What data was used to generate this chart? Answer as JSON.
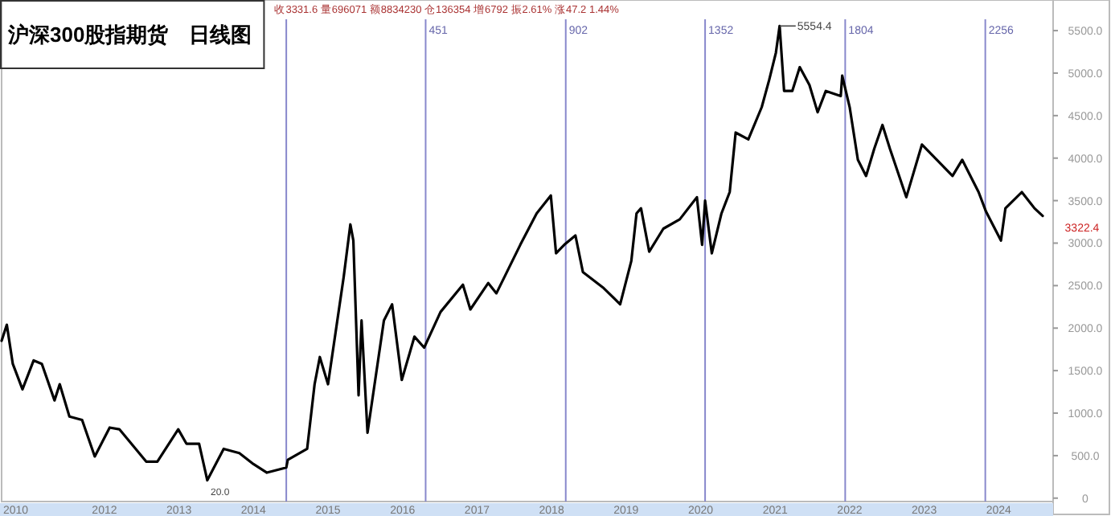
{
  "chart_data": {
    "type": "line",
    "title": "沪深300股指期货　日线图",
    "annotations": [
      "收3331.6 量696071 额8834230 仓136354 增6792 振2.61% 涨47.2 1.44%",
      {
        "text": "5554.4",
        "x": 2021.06,
        "y": 5554.4
      },
      "20.0",
      "3322.4",
      "2010",
      "451",
      "902",
      "1352",
      "1804",
      "2256"
    ],
    "xlim": [
      2010.62,
      2024.73
    ],
    "ylim": [
      -40,
      5860
    ],
    "xticks": [
      2012,
      2013,
      2014,
      2015,
      2016,
      2017,
      2018,
      2019,
      2020,
      2021,
      2022,
      2023,
      2024
    ],
    "yticks": [
      0,
      {
        "value": 500,
        "label": "500.0"
      },
      {
        "value": 1000,
        "label": "1000.0"
      },
      {
        "value": 1500,
        "label": "1500.0"
      },
      {
        "value": 2000,
        "label": "2000.0"
      },
      {
        "value": 2500,
        "label": "2500.0"
      },
      {
        "value": 3000,
        "label": "3000.0"
      },
      {
        "value": 3500,
        "label": "3500.0"
      },
      {
        "value": 4000,
        "label": "4000.0"
      },
      {
        "value": 4500,
        "label": "4500.0"
      },
      {
        "value": 5000,
        "label": "5000.0"
      },
      {
        "value": 5500,
        "label": "5500.0"
      }
    ],
    "x": [
      2010.62,
      2010.69,
      2010.77,
      2010.9,
      2011.05,
      2011.16,
      2011.33,
      2011.4,
      2011.53,
      2011.7,
      2011.87,
      2012.07,
      2012.2,
      2012.56,
      2012.71,
      2012.99,
      2013.1,
      2013.27,
      2013.38,
      2013.6,
      2013.81,
      2014.0,
      2014.18,
      2014.44,
      2014.46,
      2014.72,
      2014.82,
      2014.89,
      2015.0,
      2015.21,
      2015.3,
      2015.34,
      2015.41,
      2015.45,
      2015.53,
      2015.75,
      2015.86,
      2015.99,
      2016.16,
      2016.29,
      2016.51,
      2016.81,
      2016.91,
      2017.15,
      2017.26,
      2017.58,
      2017.8,
      2017.99,
      2018.06,
      2018.17,
      2018.32,
      2018.42,
      2018.7,
      2018.92,
      2019.07,
      2019.14,
      2019.2,
      2019.31,
      2019.5,
      2019.72,
      2019.95,
      2020.02,
      2020.06,
      2020.15,
      2020.28,
      2020.39,
      2020.47,
      2020.64,
      2020.82,
      2020.92,
      2021.01,
      2021.06,
      2021.12,
      2021.23,
      2021.33,
      2021.46,
      2021.57,
      2021.68,
      2021.88,
      2021.9,
      2022.0,
      2022.11,
      2022.22,
      2022.33,
      2022.44,
      2022.54,
      2022.76,
      2022.97,
      2023.17,
      2023.38,
      2023.51,
      2023.73,
      2023.83,
      2024.03,
      2024.09,
      2024.31,
      2024.48,
      2024.59
    ],
    "series": [
      {
        "color": "#000000",
        "values": [
          1850,
          2040,
          1580,
          1280,
          1620,
          1580,
          1150,
          1340,
          960,
          920,
          490,
          830,
          810,
          430,
          430,
          810,
          640,
          640,
          210,
          580,
          530,
          400,
          300,
          360,
          450,
          580,
          1340,
          1660,
          1340,
          2600,
          3220,
          3030,
          1210,
          2090,
          770,
          2090,
          2280,
          1390,
          1900,
          1770,
          2190,
          2510,
          2220,
          2530,
          2410,
          2980,
          3350,
          3560,
          2880,
          2980,
          3090,
          2660,
          2470,
          2280,
          2790,
          3350,
          3410,
          2900,
          3170,
          3280,
          3540,
          2980,
          3500,
          2880,
          3350,
          3600,
          4300,
          4220,
          4600,
          4920,
          5240,
          5554.4,
          4790,
          4790,
          5070,
          4860,
          4540,
          4790,
          4730,
          4970,
          4600,
          3980,
          3790,
          4110,
          4390,
          4110,
          3540,
          4160,
          3980,
          3790,
          3980,
          3600,
          3370,
          3030,
          3410,
          3600,
          3410,
          3320
        ]
      }
    ],
    "ref_lines": [
      {
        "axis": "x",
        "value": 2014.44,
        "label": null,
        "color": "#8888cc"
      },
      {
        "axis": "x",
        "value": 2016.31,
        "label": null,
        "color": "#8888cc"
      },
      {
        "axis": "x",
        "value": 2018.19,
        "label": null,
        "color": "#8888cc"
      },
      {
        "axis": "x",
        "value": 2020.06,
        "label": null,
        "color": "#8888cc"
      },
      {
        "axis": "x",
        "value": 2021.94,
        "label": null,
        "color": "#8888cc"
      },
      {
        "axis": "x",
        "value": 2023.82,
        "label": null,
        "color": "#8888cc"
      }
    ]
  }
}
